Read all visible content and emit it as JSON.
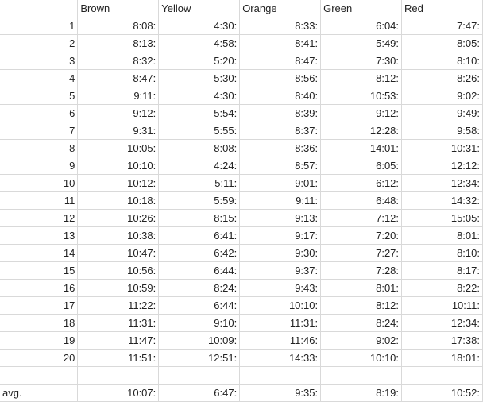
{
  "columns": [
    "",
    "Brown",
    "Yellow",
    "Orange",
    "Green",
    "Red"
  ],
  "rows": [
    [
      "1",
      "8:08:",
      "4:30:",
      "8:33:",
      "6:04:",
      "7:47:"
    ],
    [
      "2",
      "8:13:",
      "4:58:",
      "8:41:",
      "5:49:",
      "8:05:"
    ],
    [
      "3",
      "8:32:",
      "5:20:",
      "8:47:",
      "7:30:",
      "8:10:"
    ],
    [
      "4",
      "8:47:",
      "5:30:",
      "8:56:",
      "8:12:",
      "8:26:"
    ],
    [
      "5",
      "9:11:",
      "4:30:",
      "8:40:",
      "10:53:",
      "9:02:"
    ],
    [
      "6",
      "9:12:",
      "5:54:",
      "8:39:",
      "9:12:",
      "9:49:"
    ],
    [
      "7",
      "9:31:",
      "5:55:",
      "8:37:",
      "12:28:",
      "9:58:"
    ],
    [
      "8",
      "10:05:",
      "8:08:",
      "8:36:",
      "14:01:",
      "10:31:"
    ],
    [
      "9",
      "10:10:",
      "4:24:",
      "8:57:",
      "6:05:",
      "12:12:"
    ],
    [
      "10",
      "10:12:",
      "5:11:",
      "9:01:",
      "6:12:",
      "12:34:"
    ],
    [
      "11",
      "10:18:",
      "5:59:",
      "9:11:",
      "6:48:",
      "14:32:"
    ],
    [
      "12",
      "10:26:",
      "8:15:",
      "9:13:",
      "7:12:",
      "15:05:"
    ],
    [
      "13",
      "10:38:",
      "6:41:",
      "9:17:",
      "7:20:",
      "8:01:"
    ],
    [
      "14",
      "10:47:",
      "6:42:",
      "9:30:",
      "7:27:",
      "8:10:"
    ],
    [
      "15",
      "10:56:",
      "6:44:",
      "9:37:",
      "7:28:",
      "8:17:"
    ],
    [
      "16",
      "10:59:",
      "8:24:",
      "9:43:",
      "8:01:",
      "8:22:"
    ],
    [
      "17",
      "11:22:",
      "6:44:",
      "10:10:",
      "8:12:",
      "10:11:"
    ],
    [
      "18",
      "11:31:",
      "9:10:",
      "11:31:",
      "8:24:",
      "12:34:"
    ],
    [
      "19",
      "11:47:",
      "10:09:",
      "11:46:",
      "9:02:",
      "17:38:"
    ],
    [
      "20",
      "11:51:",
      "12:51:",
      "14:33:",
      "10:10:",
      "18:01:"
    ]
  ],
  "average": {
    "label": "avg.",
    "values": [
      "10:07:",
      "6:47:",
      "9:35:",
      "8:19:",
      "10:52:"
    ]
  }
}
